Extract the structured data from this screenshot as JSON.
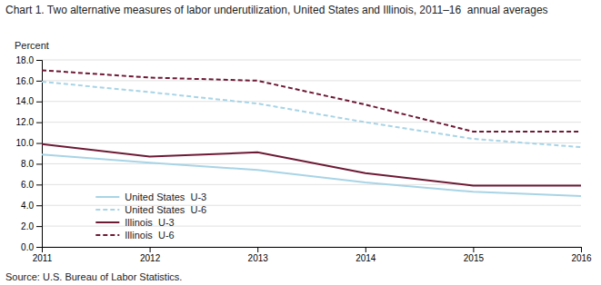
{
  "chart_data": {
    "type": "line",
    "title": "Chart 1. Two alternative measures of labor underutilization, United States and Illinois, 2011–16  annual averages",
    "y_label": "Percent",
    "annotations": [
      "Source: U.S. Bureau of Labor Statistics."
    ],
    "x": [
      2011,
      2012,
      2013,
      2014,
      2015,
      2016
    ],
    "xlim": [
      2011,
      2016
    ],
    "xticks": [
      2011,
      2012,
      2013,
      2014,
      2015,
      2016
    ],
    "ylim": [
      0,
      18.0
    ],
    "yticks": [
      {
        "value": 0.0,
        "label": "0.0"
      },
      {
        "value": 2.0,
        "label": "2.0"
      },
      {
        "value": 4.0,
        "label": "4.0"
      },
      {
        "value": 6.0,
        "label": "6.0"
      },
      {
        "value": 8.0,
        "label": "8.0"
      },
      {
        "value": 10.0,
        "label": "10.0"
      },
      {
        "value": 12.0,
        "label": "12.0"
      },
      {
        "value": 14.0,
        "label": "14.0"
      },
      {
        "value": 16.0,
        "label": "16.0"
      },
      {
        "value": 18.0,
        "label": "18.0"
      }
    ],
    "grid": "y",
    "legend": "lower left",
    "series": [
      {
        "name": "United States  U-3",
        "color": "#a8d4e6",
        "line_style": "solid",
        "values": [
          8.9,
          8.1,
          7.4,
          6.2,
          5.3,
          4.9
        ]
      },
      {
        "name": "United States  U-6",
        "color": "#a8d4e6",
        "line_style": "dashed",
        "values": [
          15.9,
          14.9,
          13.8,
          12.0,
          10.4,
          9.6
        ]
      },
      {
        "name": "Illinois  U-3",
        "color": "#6d1a35",
        "line_style": "solid",
        "values": [
          9.9,
          8.7,
          9.1,
          7.1,
          5.9,
          5.9
        ]
      },
      {
        "name": "Illinois  U-6",
        "color": "#6d1a35",
        "line_style": "dashed",
        "values": [
          17.0,
          16.3,
          16.0,
          13.7,
          11.1,
          11.1
        ]
      }
    ]
  }
}
